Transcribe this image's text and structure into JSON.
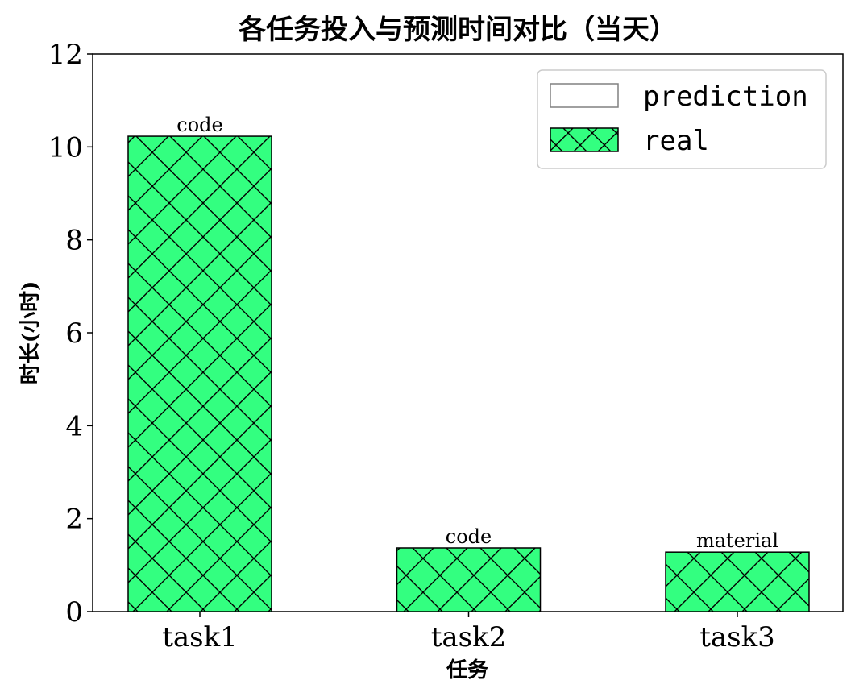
{
  "chart_data": {
    "type": "bar",
    "title": "各任务投入与预测时间对比（当天）",
    "xlabel": "任务",
    "ylabel": "时长(小时)",
    "categories": [
      "task1",
      "task2",
      "task3"
    ],
    "series": [
      {
        "name": "prediction",
        "values": [
          0,
          0,
          0
        ],
        "color": "#ffffff",
        "edge": "#808080"
      },
      {
        "name": "real",
        "values": [
          10.23,
          1.37,
          1.28
        ],
        "color": "#33ff80",
        "edge": "#000000",
        "hatch": "x"
      }
    ],
    "bar_labels": [
      "code",
      "code",
      "material"
    ],
    "ylim": [
      0,
      12
    ],
    "yticks": [
      "0",
      "2",
      "4",
      "6",
      "8",
      "10",
      "12"
    ],
    "grid": false,
    "legend_position": "top-right"
  }
}
